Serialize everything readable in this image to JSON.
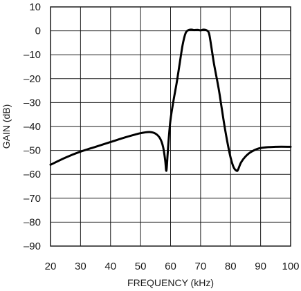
{
  "chart_data": {
    "type": "line",
    "title": "",
    "xlabel": "FREQUENCY (kHz)",
    "ylabel": "GAIN (dB)",
    "xlim": [
      20,
      100
    ],
    "ylim": [
      -90,
      10
    ],
    "xticks": [
      20,
      30,
      40,
      50,
      60,
      70,
      80,
      90,
      100
    ],
    "yticks": [
      10,
      0,
      -10,
      -20,
      -30,
      -40,
      -50,
      -60,
      -70,
      -80,
      -90
    ],
    "xtick_labels": [
      "20",
      "30",
      "40",
      "50",
      "60",
      "70",
      "80",
      "90",
      "100"
    ],
    "ytick_labels": [
      "10",
      "0",
      "–10",
      "–20",
      "–30",
      "–40",
      "–50",
      "–60",
      "–70",
      "–80",
      "–90"
    ],
    "grid": true,
    "legend": false,
    "series": [
      {
        "color": "#000000",
        "x": [
          20,
          25,
          30,
          35,
          40,
          45,
          50,
          53,
          55,
          56.5,
          57.5,
          58.2,
          58.6,
          59.0,
          59.4,
          60,
          61,
          62,
          63,
          64,
          65,
          66,
          67,
          67.8,
          69,
          70,
          71,
          72,
          72.8,
          73.5,
          74.5,
          76,
          77,
          78,
          79,
          80,
          81,
          82,
          82.5,
          83.5,
          85,
          87,
          90,
          95,
          100
        ],
        "y": [
          -56,
          -53,
          -50.5,
          -48.5,
          -46.5,
          -44.5,
          -42.8,
          -42.3,
          -43,
          -45,
          -48.5,
          -54,
          -58.5,
          -52,
          -45,
          -37,
          -29,
          -22,
          -14,
          -6,
          -1,
          0.3,
          0.5,
          0.3,
          0.4,
          0.2,
          0.5,
          0.2,
          -1,
          -6,
          -14,
          -24,
          -32,
          -40,
          -47,
          -53,
          -57,
          -58.5,
          -58,
          -55,
          -52.5,
          -50.5,
          -49,
          -48.5,
          -48.5
        ]
      }
    ]
  }
}
